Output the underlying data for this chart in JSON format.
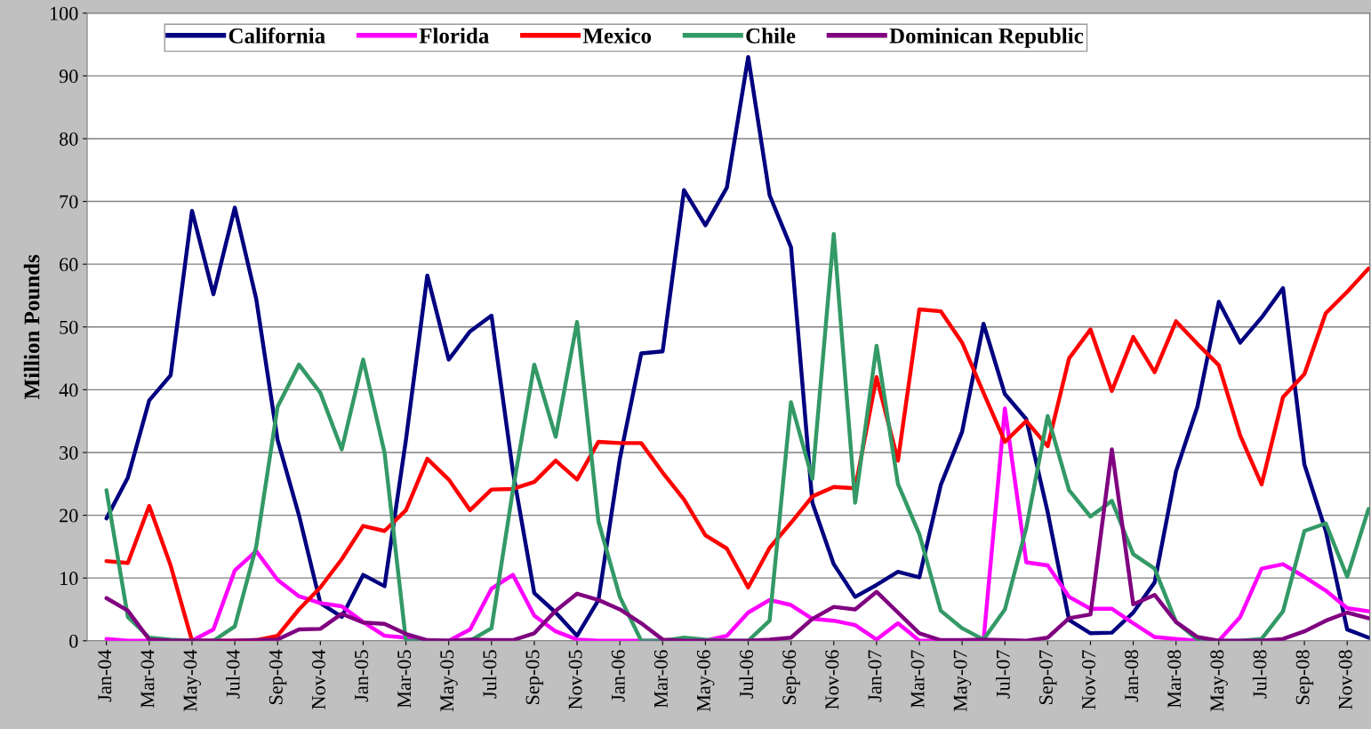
{
  "chart_data": {
    "type": "line",
    "ylabel": "Million Pounds",
    "categories": [
      "Jan-04",
      null,
      "Mar-04",
      null,
      "May-04",
      null,
      "Jul-04",
      null,
      "Sep-04",
      null,
      "Nov-04",
      null,
      "Jan-05",
      null,
      "Mar-05",
      null,
      "May-05",
      null,
      "Jul-05",
      null,
      "Sep-05",
      null,
      "Nov-05",
      null,
      "Jan-06",
      null,
      "Mar-06",
      null,
      "May-06",
      null,
      "Jul-06",
      null,
      "Sep-06",
      null,
      "Nov-06",
      null,
      "Jan-07",
      null,
      "Mar-07",
      null,
      "May-07",
      null,
      "Jul-07",
      null,
      "Sep-07",
      null,
      "Nov-07",
      null,
      "Jan-08",
      null,
      "Mar-08",
      null,
      "May-08",
      null,
      "Jul-08",
      null,
      "Sep-08",
      null,
      "Nov-08",
      null
    ],
    "ylim": [
      0,
      100
    ],
    "yticks": [
      0,
      10,
      20,
      30,
      40,
      50,
      60,
      70,
      80,
      90,
      100
    ],
    "grid": "y",
    "legend": "top",
    "line_style": "solid",
    "marker": "none",
    "series": [
      {
        "name": "California",
        "color": "#000080",
        "values": [
          19.5,
          26,
          38.3,
          42.3,
          68.5,
          55.2,
          69,
          54.5,
          32,
          20,
          6,
          3.8,
          10.5,
          8.7,
          32,
          58.2,
          44.8,
          49.3,
          51.8,
          27,
          7.6,
          4.5,
          0.8,
          6.5,
          29,
          45.8,
          46.1,
          71.8,
          66.2,
          72.2,
          93,
          71,
          62.7,
          22,
          12.2,
          7,
          8.9,
          11,
          10.1,
          24.8,
          33.3,
          50.5,
          39.3,
          35.3,
          20.5,
          3.3,
          1.2,
          1.3,
          4.5,
          9.3,
          27,
          37.3,
          54,
          47.5,
          51.5,
          56.2,
          28.1,
          17.5,
          1.8,
          0.5
        ]
      },
      {
        "name": "Florida",
        "color": "#ff00ff",
        "values": [
          0.3,
          0,
          0,
          0,
          0,
          1.8,
          11.2,
          14.3,
          9.7,
          7.1,
          6,
          5.5,
          3,
          0.8,
          0.5,
          0,
          0,
          1.8,
          8.3,
          10.5,
          4,
          1.5,
          0.2,
          0,
          0,
          0,
          0,
          0,
          0,
          0.8,
          4.5,
          6.5,
          5.7,
          3.5,
          3.2,
          2.5,
          0.2,
          2.8,
          0,
          0,
          0,
          0,
          37,
          12.5,
          12,
          7,
          5.1,
          5.1,
          2.8,
          0.6,
          0.3,
          0,
          0,
          3.8,
          11.5,
          12.2,
          10.2,
          8,
          5.2,
          4.7
        ]
      },
      {
        "name": "Mexico",
        "color": "#ff0000",
        "values": [
          12.7,
          12.4,
          21.5,
          12,
          0,
          0,
          0,
          0.1,
          0.8,
          5,
          8.5,
          13,
          18.3,
          17.5,
          20.8,
          29,
          25.7,
          20.8,
          24.1,
          24.2,
          25.3,
          28.7,
          25.7,
          31.7,
          31.5,
          31.5,
          26.8,
          22.5,
          16.8,
          14.7,
          8.5,
          14.8,
          18.8,
          23,
          24.5,
          24.3,
          42,
          28.7,
          52.8,
          52.5,
          47.5,
          39.5,
          31.7,
          35,
          31,
          45,
          49.6,
          39.8,
          48.4,
          42.8,
          50.9,
          47.3,
          43.9,
          32.7,
          24.9,
          38.8,
          42.5,
          52.2,
          55.6,
          59.3
        ]
      },
      {
        "name": "Chile",
        "color": "#339966",
        "values": [
          24,
          3.8,
          0.5,
          0.2,
          0,
          0,
          2.3,
          15,
          37.3,
          44,
          39.5,
          30.5,
          44.8,
          30,
          0,
          0,
          0,
          0,
          2,
          24,
          44,
          32.5,
          50.8,
          19,
          7,
          0,
          0,
          0.5,
          0.2,
          0,
          0,
          3.2,
          38,
          25.8,
          64.8,
          22,
          47,
          25,
          17,
          4.8,
          2,
          0.2,
          5,
          18,
          35.8,
          24,
          19.8,
          22.3,
          13.8,
          11.5,
          3,
          0.2,
          0,
          0,
          0.3,
          4.7,
          17.5,
          18.7,
          10.2,
          21
        ]
      },
      {
        "name": "Dominican Republic",
        "color": "#800080",
        "values": [
          6.8,
          4.8,
          0.2,
          0,
          0,
          0,
          0,
          0.1,
          0.2,
          1.8,
          1.9,
          4.3,
          2.9,
          2.7,
          1.1,
          0.1,
          0,
          0.2,
          0.1,
          0.1,
          1.2,
          4.8,
          7.5,
          6.5,
          5,
          2.8,
          0.2,
          0,
          0,
          0,
          0,
          0.2,
          0.5,
          3.5,
          5.4,
          5,
          7.8,
          4.5,
          1.2,
          0.1,
          0.1,
          0.2,
          0.1,
          0,
          0.5,
          3.6,
          4.2,
          30.5,
          5.8,
          7.3,
          3,
          0.6,
          0,
          0,
          0,
          0.3,
          1.5,
          3.2,
          4.5,
          3.6
        ]
      }
    ]
  }
}
